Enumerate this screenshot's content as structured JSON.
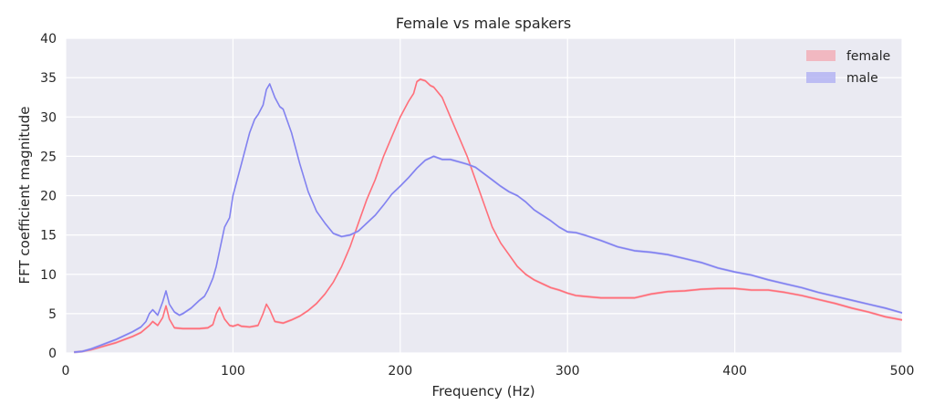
{
  "chart_data": {
    "type": "line",
    "title": "Female vs male spakers",
    "xlabel": "Frequency (Hz)",
    "ylabel": "FFT coefficient magnitude",
    "xlim": [
      0,
      500
    ],
    "ylim": [
      0,
      40
    ],
    "xticks": [
      0,
      100,
      200,
      300,
      400,
      500
    ],
    "yticks": [
      0,
      5,
      10,
      15,
      20,
      25,
      30,
      35,
      40
    ],
    "grid": true,
    "legend_position": "top-right",
    "series": [
      {
        "name": "female",
        "color": "#ff6f7a",
        "band_color": "#f4a3ad",
        "x": [
          5,
          10,
          15,
          20,
          25,
          30,
          35,
          40,
          45,
          50,
          52,
          55,
          58,
          60,
          62,
          65,
          70,
          75,
          80,
          85,
          88,
          90,
          92,
          95,
          98,
          100,
          103,
          105,
          110,
          115,
          118,
          120,
          122,
          125,
          130,
          135,
          140,
          145,
          150,
          155,
          160,
          165,
          170,
          175,
          180,
          185,
          190,
          195,
          200,
          205,
          208,
          210,
          212,
          215,
          218,
          220,
          225,
          230,
          235,
          240,
          245,
          250,
          255,
          260,
          265,
          270,
          275,
          280,
          285,
          290,
          295,
          300,
          305,
          310,
          320,
          330,
          340,
          350,
          360,
          370,
          380,
          390,
          400,
          410,
          420,
          430,
          440,
          450,
          460,
          470,
          480,
          490,
          500
        ],
        "y": [
          0.1,
          0.2,
          0.4,
          0.7,
          1.0,
          1.3,
          1.7,
          2.1,
          2.6,
          3.5,
          4.0,
          3.5,
          4.5,
          6.0,
          4.3,
          3.2,
          3.1,
          3.1,
          3.1,
          3.2,
          3.6,
          5.0,
          5.8,
          4.3,
          3.5,
          3.4,
          3.6,
          3.4,
          3.3,
          3.5,
          5.0,
          6.2,
          5.5,
          4.0,
          3.8,
          4.2,
          4.7,
          5.4,
          6.3,
          7.5,
          9.0,
          11.0,
          13.5,
          16.5,
          19.5,
          22.0,
          25.0,
          27.5,
          30.0,
          32.0,
          33.0,
          34.5,
          34.8,
          34.6,
          34.0,
          33.8,
          32.5,
          30.0,
          27.5,
          25.0,
          22.0,
          19.0,
          16.0,
          14.0,
          12.5,
          11.0,
          10.0,
          9.3,
          8.8,
          8.3,
          8.0,
          7.6,
          7.3,
          7.2,
          7.0,
          7.0,
          7.0,
          7.5,
          7.8,
          7.9,
          8.1,
          8.2,
          8.2,
          8.0,
          8.0,
          7.7,
          7.3,
          6.8,
          6.3,
          5.7,
          5.2,
          4.6,
          4.2
        ]
      },
      {
        "name": "male",
        "color": "#8282f0",
        "band_color": "#b0b0f2",
        "x": [
          5,
          10,
          15,
          20,
          25,
          30,
          35,
          40,
          45,
          48,
          50,
          52,
          55,
          58,
          60,
          62,
          65,
          68,
          70,
          75,
          80,
          83,
          85,
          88,
          90,
          92,
          95,
          98,
          100,
          105,
          110,
          113,
          115,
          118,
          120,
          122,
          125,
          128,
          130,
          135,
          140,
          145,
          150,
          155,
          160,
          165,
          170,
          175,
          180,
          185,
          190,
          195,
          200,
          205,
          210,
          215,
          218,
          220,
          225,
          230,
          235,
          240,
          245,
          250,
          255,
          260,
          265,
          270,
          275,
          280,
          285,
          290,
          295,
          300,
          305,
          310,
          320,
          330,
          340,
          350,
          360,
          370,
          380,
          390,
          400,
          410,
          420,
          430,
          440,
          450,
          460,
          470,
          480,
          490,
          500
        ],
        "y": [
          0.1,
          0.2,
          0.5,
          0.9,
          1.3,
          1.7,
          2.2,
          2.7,
          3.3,
          4.0,
          5.0,
          5.5,
          4.8,
          6.5,
          7.9,
          6.2,
          5.2,
          4.8,
          5.0,
          5.7,
          6.7,
          7.2,
          8.0,
          9.5,
          11.0,
          13.0,
          16.0,
          17.2,
          20.0,
          24.0,
          28.0,
          29.7,
          30.3,
          31.5,
          33.5,
          34.2,
          32.5,
          31.3,
          31.0,
          28.0,
          24.0,
          20.5,
          18.0,
          16.5,
          15.2,
          14.8,
          15.0,
          15.5,
          16.5,
          17.5,
          18.8,
          20.2,
          21.2,
          22.3,
          23.5,
          24.5,
          24.8,
          25.0,
          24.6,
          24.6,
          24.3,
          24.0,
          23.6,
          22.8,
          22.0,
          21.2,
          20.5,
          20.0,
          19.2,
          18.2,
          17.5,
          16.8,
          16.0,
          15.4,
          15.3,
          15.0,
          14.3,
          13.5,
          13.0,
          12.8,
          12.5,
          12.0,
          11.5,
          10.8,
          10.3,
          9.9,
          9.3,
          8.8,
          8.3,
          7.7,
          7.2,
          6.7,
          6.2,
          5.7,
          5.1
        ]
      }
    ]
  }
}
